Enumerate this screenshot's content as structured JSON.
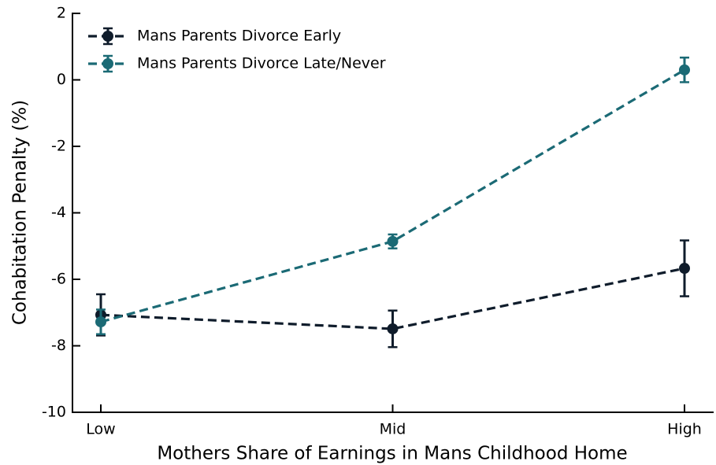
{
  "chart_data": {
    "type": "line",
    "xlabel": "Mothers Share of Earnings in Mans Childhood Home",
    "ylabel": "Cohabitation Penalty (%)",
    "categories": [
      "Low",
      "Mid",
      "High"
    ],
    "series": [
      {
        "name": "Mans Parents Divorce Early",
        "color": "#0f1c2b",
        "values": [
          -7.07,
          -7.49,
          -5.67
        ],
        "errors": [
          0.62,
          0.55,
          0.84
        ]
      },
      {
        "name": "Mans Parents Divorce Late/Never",
        "color": "#1b6a75",
        "values": [
          -7.28,
          -4.86,
          0.3
        ],
        "errors": [
          0.37,
          0.21,
          0.37
        ]
      }
    ],
    "ylim": [
      -10,
      2
    ],
    "yticks": [
      -10,
      -8,
      -6,
      -4,
      -2,
      0,
      2
    ],
    "legend": "upper left"
  }
}
